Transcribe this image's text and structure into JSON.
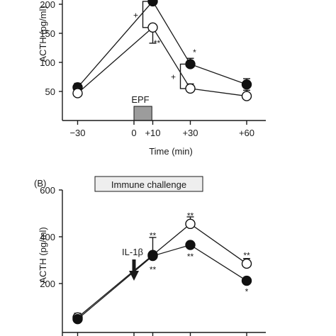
{
  "chart_data": [
    {
      "type": "line",
      "panel_label": "",
      "title": "",
      "xlabel": "Time (min)",
      "ylabel": "ACTH (pg/ml)",
      "x": [
        -30,
        10,
        30,
        60
      ],
      "x_ticks": [
        -30,
        0,
        10,
        30,
        60
      ],
      "x_tick_labels": [
        "−30",
        "0",
        "+10",
        "+30",
        "+60"
      ],
      "y_ticks": [
        50,
        100,
        150,
        200
      ],
      "y_tick_labels": [
        "50",
        "100",
        "150",
        "200"
      ],
      "ylim": [
        0,
        225
      ],
      "grid": false,
      "stimulus_box": {
        "label": "EPF",
        "x_start": 0,
        "x_end": 5
      },
      "series": [
        {
          "marker": "filled",
          "values": [
            57,
            205,
            97,
            62
          ],
          "errors": [
            7,
            12,
            10,
            10
          ]
        },
        {
          "marker": "open",
          "values": [
            47,
            160,
            55,
            42
          ],
          "errors": [
            10,
            27,
            8,
            10
          ]
        }
      ],
      "annotations": [
        {
          "text": "+",
          "x": 10,
          "kind": "bracket",
          "y_low": 160,
          "y_high": 205
        },
        {
          "text": "**",
          "x": 10,
          "y": 128
        },
        {
          "text": "*",
          "x": 30,
          "y": 112
        },
        {
          "text": "+",
          "x": 30,
          "kind": "bracket",
          "y_low": 55,
          "y_high": 97
        }
      ]
    },
    {
      "type": "line",
      "panel_label": "(B)",
      "title": "Immune challenge",
      "xlabel": "",
      "ylabel": "ACTH (pg/ml)",
      "x": [
        -30,
        10,
        30,
        60
      ],
      "y_ticks": [
        200,
        400,
        600
      ],
      "y_tick_labels": [
        "200",
        "400",
        "600"
      ],
      "ylim": [
        80,
        600
      ],
      "grid": false,
      "stimulus_arrow": {
        "label": "IL-1β",
        "x": 0
      },
      "series": [
        {
          "marker": "filled",
          "values": [
            48,
            318,
            365,
            212
          ],
          "errors": [
            0,
            0,
            0,
            0
          ]
        },
        {
          "marker": "open",
          "values": [
            55,
            322,
            455,
            285
          ],
          "errors": [
            18,
            75,
            30,
            22
          ]
        }
      ],
      "annotations": [
        {
          "text": "**",
          "x": 10,
          "y": 408
        },
        {
          "text": "**",
          "x": 10,
          "y": 262
        },
        {
          "text": "**",
          "x": 30,
          "y": 492
        },
        {
          "text": "**",
          "x": 30,
          "y": 318
        },
        {
          "text": "**",
          "x": 60,
          "y": 322
        },
        {
          "text": "*",
          "x": 60,
          "y": 168
        }
      ]
    }
  ]
}
